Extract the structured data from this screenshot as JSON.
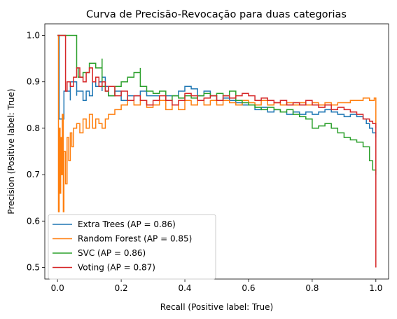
{
  "chart_data": {
    "type": "line",
    "title": "Curva de Precisão-Revocação para duas categorias",
    "xlabel": "Recall (Positive label: True)",
    "ylabel": "Precision (Positive label: True)",
    "xlim": [
      -0.04,
      1.04
    ],
    "ylim": [
      0.475,
      1.025
    ],
    "xticks": [
      "0.0",
      "0.2",
      "0.4",
      "0.6",
      "0.8",
      "1.0"
    ],
    "yticks": [
      "0.5",
      "0.6",
      "0.7",
      "0.8",
      "0.9",
      "1.0"
    ],
    "grid": false,
    "legend_position": "lower-left",
    "series": [
      {
        "name": "Extra Trees (AP = 0.86)",
        "color": "#1f77b4",
        "x": [
          0.0,
          0.005,
          0.005,
          0.02,
          0.02,
          0.04,
          0.04,
          0.06,
          0.06,
          0.08,
          0.09,
          0.1,
          0.11,
          0.12,
          0.13,
          0.14,
          0.14,
          0.15,
          0.16,
          0.18,
          0.2,
          0.22,
          0.24,
          0.26,
          0.28,
          0.3,
          0.32,
          0.34,
          0.36,
          0.38,
          0.4,
          0.42,
          0.44,
          0.46,
          0.48,
          0.5,
          0.52,
          0.54,
          0.56,
          0.58,
          0.6,
          0.62,
          0.64,
          0.66,
          0.68,
          0.7,
          0.72,
          0.74,
          0.76,
          0.78,
          0.8,
          0.82,
          0.84,
          0.86,
          0.88,
          0.9,
          0.92,
          0.94,
          0.96,
          0.97,
          0.98,
          0.99,
          1.0
        ],
        "y": [
          1.0,
          1.0,
          0.82,
          0.86,
          0.88,
          0.86,
          0.9,
          0.87,
          0.88,
          0.86,
          0.88,
          0.87,
          0.9,
          0.89,
          0.9,
          0.88,
          0.91,
          0.89,
          0.87,
          0.88,
          0.86,
          0.87,
          0.87,
          0.88,
          0.87,
          0.87,
          0.86,
          0.87,
          0.87,
          0.88,
          0.89,
          0.885,
          0.87,
          0.88,
          0.87,
          0.86,
          0.865,
          0.86,
          0.855,
          0.85,
          0.85,
          0.84,
          0.845,
          0.835,
          0.84,
          0.835,
          0.83,
          0.835,
          0.83,
          0.835,
          0.83,
          0.835,
          0.84,
          0.835,
          0.83,
          0.825,
          0.83,
          0.825,
          0.82,
          0.81,
          0.8,
          0.79,
          0.78
        ]
      },
      {
        "name": "Random Forest (AP = 0.85)",
        "color": "#ff7f0e",
        "x": [
          0.0,
          0.003,
          0.005,
          0.008,
          0.01,
          0.012,
          0.015,
          0.018,
          0.02,
          0.025,
          0.03,
          0.035,
          0.04,
          0.045,
          0.05,
          0.06,
          0.07,
          0.08,
          0.09,
          0.1,
          0.11,
          0.12,
          0.13,
          0.14,
          0.15,
          0.16,
          0.18,
          0.2,
          0.22,
          0.24,
          0.26,
          0.28,
          0.3,
          0.32,
          0.34,
          0.36,
          0.38,
          0.4,
          0.42,
          0.44,
          0.46,
          0.48,
          0.5,
          0.52,
          0.54,
          0.56,
          0.58,
          0.6,
          0.62,
          0.64,
          0.66,
          0.68,
          0.7,
          0.72,
          0.74,
          0.76,
          0.78,
          0.8,
          0.82,
          0.84,
          0.86,
          0.88,
          0.9,
          0.92,
          0.94,
          0.96,
          0.98,
          0.995,
          1.0,
          1.0
        ],
        "y": [
          1.0,
          0.62,
          0.8,
          0.66,
          0.78,
          0.7,
          0.83,
          0.62,
          0.75,
          0.68,
          0.78,
          0.73,
          0.79,
          0.76,
          0.8,
          0.81,
          0.79,
          0.82,
          0.8,
          0.83,
          0.8,
          0.82,
          0.81,
          0.8,
          0.82,
          0.83,
          0.84,
          0.85,
          0.86,
          0.85,
          0.86,
          0.845,
          0.85,
          0.86,
          0.84,
          0.85,
          0.84,
          0.86,
          0.85,
          0.86,
          0.85,
          0.86,
          0.85,
          0.86,
          0.855,
          0.85,
          0.86,
          0.855,
          0.85,
          0.86,
          0.85,
          0.855,
          0.85,
          0.855,
          0.85,
          0.855,
          0.85,
          0.855,
          0.85,
          0.855,
          0.85,
          0.855,
          0.855,
          0.86,
          0.86,
          0.865,
          0.86,
          0.865,
          0.865,
          0.8
        ]
      },
      {
        "name": "SVC (AP = 0.86)",
        "color": "#2ca02c",
        "x": [
          0.0,
          0.01,
          0.02,
          0.04,
          0.05,
          0.055,
          0.06,
          0.065,
          0.08,
          0.1,
          0.12,
          0.14,
          0.14,
          0.15,
          0.16,
          0.18,
          0.2,
          0.22,
          0.24,
          0.26,
          0.26,
          0.28,
          0.3,
          0.32,
          0.34,
          0.36,
          0.38,
          0.4,
          0.42,
          0.44,
          0.46,
          0.48,
          0.5,
          0.52,
          0.54,
          0.56,
          0.58,
          0.6,
          0.62,
          0.64,
          0.66,
          0.68,
          0.7,
          0.72,
          0.74,
          0.76,
          0.78,
          0.8,
          0.82,
          0.84,
          0.86,
          0.88,
          0.9,
          0.92,
          0.94,
          0.96,
          0.98,
          0.99,
          1.0
        ],
        "y": [
          1.0,
          1.0,
          1.0,
          1.0,
          1.0,
          1.0,
          0.93,
          0.91,
          0.92,
          0.94,
          0.93,
          0.95,
          0.89,
          0.88,
          0.87,
          0.89,
          0.9,
          0.91,
          0.92,
          0.93,
          0.89,
          0.88,
          0.875,
          0.88,
          0.86,
          0.87,
          0.865,
          0.87,
          0.865,
          0.87,
          0.875,
          0.87,
          0.875,
          0.87,
          0.88,
          0.86,
          0.855,
          0.85,
          0.845,
          0.84,
          0.845,
          0.84,
          0.835,
          0.84,
          0.83,
          0.825,
          0.82,
          0.8,
          0.805,
          0.81,
          0.8,
          0.79,
          0.78,
          0.775,
          0.77,
          0.76,
          0.73,
          0.71,
          0.7
        ]
      },
      {
        "name": "Voting (AP = 0.87)",
        "color": "#d62728",
        "x": [
          0.0,
          0.005,
          0.01,
          0.02,
          0.025,
          0.025,
          0.03,
          0.04,
          0.05,
          0.06,
          0.07,
          0.08,
          0.09,
          0.1,
          0.11,
          0.12,
          0.13,
          0.14,
          0.15,
          0.16,
          0.18,
          0.2,
          0.22,
          0.24,
          0.26,
          0.28,
          0.3,
          0.32,
          0.34,
          0.36,
          0.38,
          0.4,
          0.42,
          0.44,
          0.46,
          0.48,
          0.5,
          0.52,
          0.54,
          0.56,
          0.58,
          0.6,
          0.62,
          0.64,
          0.66,
          0.68,
          0.7,
          0.72,
          0.74,
          0.76,
          0.78,
          0.8,
          0.82,
          0.84,
          0.86,
          0.88,
          0.9,
          0.92,
          0.94,
          0.96,
          0.98,
          0.99,
          1.0,
          1.0
        ],
        "y": [
          1.0,
          1.0,
          1.0,
          1.0,
          1.0,
          0.88,
          0.9,
          0.89,
          0.91,
          0.93,
          0.91,
          0.9,
          0.92,
          0.93,
          0.9,
          0.91,
          0.89,
          0.9,
          0.88,
          0.89,
          0.87,
          0.88,
          0.86,
          0.87,
          0.86,
          0.85,
          0.86,
          0.87,
          0.86,
          0.85,
          0.86,
          0.875,
          0.87,
          0.86,
          0.865,
          0.87,
          0.86,
          0.87,
          0.865,
          0.87,
          0.875,
          0.87,
          0.86,
          0.865,
          0.86,
          0.855,
          0.86,
          0.85,
          0.855,
          0.85,
          0.86,
          0.85,
          0.845,
          0.85,
          0.84,
          0.845,
          0.84,
          0.835,
          0.83,
          0.82,
          0.815,
          0.81,
          0.81,
          0.5
        ]
      }
    ]
  }
}
